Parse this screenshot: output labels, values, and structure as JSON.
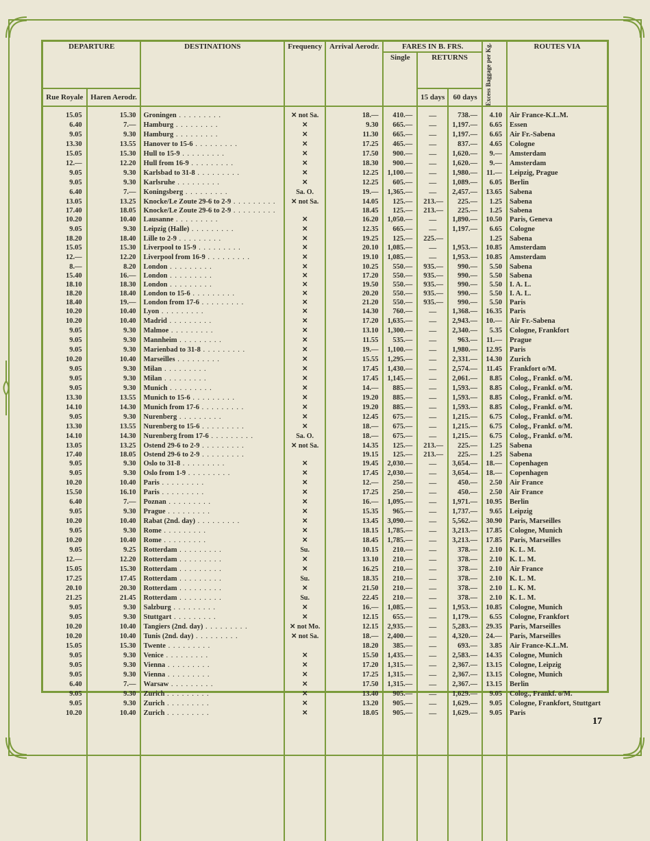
{
  "page_number": "17",
  "frame_color": "#7a9a3a",
  "bg_color": "#ebe7d6",
  "headers": {
    "departure": "DEPARTURE",
    "destinations": "DESTINATIONS",
    "frequency": "Frequency",
    "arrival": "Arrival Aerodr.",
    "fares": "FARES IN B. FRS.",
    "single": "Single",
    "returns": "RETURNS",
    "days15": "15 days",
    "days60": "60 days",
    "excess": "Excess Baggage per Kg.",
    "routes": "ROUTES VIA",
    "rue": "Rue Royale",
    "haren": "Haren Aerodr."
  },
  "freq_symbols": {
    "std": "✕",
    "not_sa": "✕ not Sa.",
    "sa_o": "Sa. O.",
    "su": "Su.",
    "not_mo": "✕ not Mo."
  },
  "rows": [
    {
      "rue": "15.05",
      "haren": "15.30",
      "dest": "Groningen",
      "freq": "✕ not Sa.",
      "arr": "18.—",
      "single": "410.—",
      "r15": "—",
      "r60": "738.—",
      "exc": "4.10",
      "route": "Air France-K.L.M."
    },
    {
      "rue": "6.40",
      "haren": "7.—",
      "dest": "Hamburg",
      "freq": "✕",
      "arr": "9.30",
      "single": "665.—",
      "r15": "—",
      "r60": "1,197.—",
      "exc": "6.65",
      "route": "Essen"
    },
    {
      "rue": "9.05",
      "haren": "9.30",
      "dest": "Hamburg",
      "freq": "✕",
      "arr": "11.30",
      "single": "665.—",
      "r15": "—",
      "r60": "1,197.—",
      "exc": "6.65",
      "route": "Air Fr.-Sabena"
    },
    {
      "rue": "13.30",
      "haren": "13.55",
      "dest": "Hanover to 15-6",
      "freq": "✕",
      "arr": "17.25",
      "single": "465.—",
      "r15": "—",
      "r60": "837.—",
      "exc": "4.65",
      "route": "Cologne"
    },
    {
      "rue": "15.05",
      "haren": "15.30",
      "dest": "Hull to 15-9",
      "freq": "✕",
      "arr": "17.50",
      "single": "900.—",
      "r15": "—",
      "r60": "1,620.—",
      "exc": "9.—",
      "route": "Amsterdam"
    },
    {
      "rue": "12.—",
      "haren": "12.20",
      "dest": "Hull from 16-9",
      "freq": "✕",
      "arr": "18.30",
      "single": "900.—",
      "r15": "—",
      "r60": "1,620.—",
      "exc": "9.—",
      "route": "Amsterdam"
    },
    {
      "rue": "9.05",
      "haren": "9.30",
      "dest": "Karlsbad to 31-8",
      "freq": "✕",
      "arr": "12.25",
      "single": "1,100.—",
      "r15": "—",
      "r60": "1,980.—",
      "exc": "11.—",
      "route": "Leipzig, Prague"
    },
    {
      "rue": "9.05",
      "haren": "9.30",
      "dest": "Karlsruhe",
      "freq": "✕",
      "arr": "12.25",
      "single": "605.—",
      "r15": "—",
      "r60": "1,089.—",
      "exc": "6.05",
      "route": "Berlin"
    },
    {
      "rue": "6.40",
      "haren": "7.—",
      "dest": "Koningsberg",
      "freq": "Sa. O.",
      "arr": "19.—",
      "single": "1,365.—",
      "r15": "—",
      "r60": "2,457.—",
      "exc": "13.65",
      "route": "Sabena"
    },
    {
      "rue": "13.05",
      "haren": "13.25",
      "dest": "Knocke/Le Zoute 29-6 to 2-9",
      "freq": "✕ not Sa.",
      "arr": "14.05",
      "single": "125.—",
      "r15": "213.—",
      "r60": "225.—",
      "exc": "1.25",
      "route": "Sabena"
    },
    {
      "rue": "17.40",
      "haren": "18.05",
      "dest": "Knocke/Le Zoute 29-6 to 2-9",
      "freq": "",
      "arr": "18.45",
      "single": "125.—",
      "r15": "213.—",
      "r60": "225.—",
      "exc": "1.25",
      "route": "Sabena"
    },
    {
      "rue": "10.20",
      "haren": "10.40",
      "dest": "Lausanne",
      "freq": "✕",
      "arr": "16.20",
      "single": "1,050.—",
      "r15": "—",
      "r60": "1,890.—",
      "exc": "10.50",
      "route": "Paris, Geneva"
    },
    {
      "rue": "9.05",
      "haren": "9.30",
      "dest": "Leipzig (Halle)",
      "freq": "✕",
      "arr": "12.35",
      "single": "665.—",
      "r15": "—",
      "r60": "1,197.—",
      "exc": "6.65",
      "route": "Cologne"
    },
    {
      "rue": "18.20",
      "haren": "18.40",
      "dest": "Lille to 2-9",
      "freq": "✕",
      "arr": "19.25",
      "single": "125.—",
      "r15": "225.—",
      "r60": "",
      "exc": "1.25",
      "route": "Sabena"
    },
    {
      "rue": "15.05",
      "haren": "15.30",
      "dest": "Liverpool to 15-9",
      "freq": "✕",
      "arr": "20.10",
      "single": "1,085.—",
      "r15": "—",
      "r60": "1,953.—",
      "exc": "10.85",
      "route": "Amsterdam"
    },
    {
      "rue": "12.—",
      "haren": "12.20",
      "dest": "Liverpool from 16-9",
      "freq": "✕",
      "arr": "19.10",
      "single": "1,085.—",
      "r15": "—",
      "r60": "1,953.—",
      "exc": "10.85",
      "route": "Amsterdam"
    },
    {
      "rue": "8.—",
      "haren": "8.20",
      "dest": "London",
      "freq": "✕",
      "arr": "10.25",
      "single": "550.—",
      "r15": "935.—",
      "r60": "990.—",
      "exc": "5.50",
      "route": "Sabena"
    },
    {
      "rue": "15.40",
      "haren": "16.—",
      "dest": "London",
      "freq": "✕",
      "arr": "17.20",
      "single": "550.—",
      "r15": "935.—",
      "r60": "990.—",
      "exc": "5.50",
      "route": "Sabena"
    },
    {
      "rue": "18.10",
      "haren": "18.30",
      "dest": "London",
      "freq": "✕",
      "arr": "19.50",
      "single": "550.—",
      "r15": "935.—",
      "r60": "990.—",
      "exc": "5.50",
      "route": "I. A. L."
    },
    {
      "rue": "18.20",
      "haren": "18.40",
      "dest": "London to 15-6",
      "freq": "✕",
      "arr": "20.20",
      "single": "550.—",
      "r15": "935.—",
      "r60": "990.—",
      "exc": "5.50",
      "route": "I. A. L."
    },
    {
      "rue": "18.40",
      "haren": "19.—",
      "dest": "London from 17-6",
      "freq": "✕",
      "arr": "21.20",
      "single": "550.—",
      "r15": "935.—",
      "r60": "990.—",
      "exc": "5.50",
      "route": "Paris"
    },
    {
      "rue": "10.20",
      "haren": "10.40",
      "dest": "Lyon",
      "freq": "✕",
      "arr": "14.30",
      "single": "760.—",
      "r15": "—",
      "r60": "1,368.—",
      "exc": "16.35",
      "route": "Paris"
    },
    {
      "rue": "10.20",
      "haren": "10.40",
      "dest": "Madrid",
      "freq": "✕",
      "arr": "17.20",
      "single": "1,635.—",
      "r15": "—",
      "r60": "2,943.—",
      "exc": "10.—",
      "route": "Air Fr.-Sabena"
    },
    {
      "rue": "9.05",
      "haren": "9.30",
      "dest": "Malmoe",
      "freq": "✕",
      "arr": "13.10",
      "single": "1,300.—",
      "r15": "—",
      "r60": "2,340.—",
      "exc": "5.35",
      "route": "Cologne, Frankfort"
    },
    {
      "rue": "9.05",
      "haren": "9.30",
      "dest": "Mannheim",
      "freq": "✕",
      "arr": "11.55",
      "single": "535.—",
      "r15": "—",
      "r60": "963.—",
      "exc": "11.—",
      "route": "Prague"
    },
    {
      "rue": "9.05",
      "haren": "9.30",
      "dest": "Marienbad to 31-8",
      "freq": "✕",
      "arr": "19.—",
      "single": "1,100.—",
      "r15": "—",
      "r60": "1,980.—",
      "exc": "12.95",
      "route": "Paris"
    },
    {
      "rue": "10.20",
      "haren": "10.40",
      "dest": "Marseilles",
      "freq": "✕",
      "arr": "15.55",
      "single": "1,295.—",
      "r15": "—",
      "r60": "2,331.—",
      "exc": "14.30",
      "route": "Zurich"
    },
    {
      "rue": "9.05",
      "haren": "9.30",
      "dest": "Milan",
      "freq": "✕",
      "arr": "17.45",
      "single": "1,430.—",
      "r15": "—",
      "r60": "2,574.—",
      "exc": "11.45",
      "route": "Frankfort o/M."
    },
    {
      "rue": "9.05",
      "haren": "9.30",
      "dest": "Milan",
      "freq": "✕",
      "arr": "17.45",
      "single": "1,145.—",
      "r15": "—",
      "r60": "2,061.—",
      "exc": "8.85",
      "route": "Colog., Frankf. o/M."
    },
    {
      "rue": "9.05",
      "haren": "9.30",
      "dest": "Munich",
      "freq": "✕",
      "arr": "14.—",
      "single": "885.—",
      "r15": "—",
      "r60": "1,593.—",
      "exc": "8.85",
      "route": "Colog., Frankf. o/M."
    },
    {
      "rue": "13.30",
      "haren": "13.55",
      "dest": "Munich to 15-6",
      "freq": "✕",
      "arr": "19.20",
      "single": "885.—",
      "r15": "—",
      "r60": "1,593.—",
      "exc": "8.85",
      "route": "Colog., Frankf. o/M."
    },
    {
      "rue": "14.10",
      "haren": "14.30",
      "dest": "Munich from 17-6",
      "freq": "✕",
      "arr": "19.20",
      "single": "885.—",
      "r15": "—",
      "r60": "1,593.—",
      "exc": "8.85",
      "route": "Colog., Frankf. o/M."
    },
    {
      "rue": "9.05",
      "haren": "9.30",
      "dest": "Nurenberg",
      "freq": "✕",
      "arr": "12.45",
      "single": "675.—",
      "r15": "—",
      "r60": "1,215.—",
      "exc": "6.75",
      "route": "Colog., Frankf. o/M."
    },
    {
      "rue": "13.30",
      "haren": "13.55",
      "dest": "Nurenberg to 15-6",
      "freq": "✕",
      "arr": "18.—",
      "single": "675.—",
      "r15": "—",
      "r60": "1,215.—",
      "exc": "6.75",
      "route": "Colog., Frankf. o/M."
    },
    {
      "rue": "14.10",
      "haren": "14.30",
      "dest": "Nurenberg from 17-6",
      "freq": "Sa. O.",
      "arr": "18.—",
      "single": "675.—",
      "r15": "—",
      "r60": "1,215.—",
      "exc": "6.75",
      "route": "Colog., Frankf. o/M."
    },
    {
      "rue": "13.05",
      "haren": "13.25",
      "dest": "Ostend 29-6 to 2-9",
      "freq": "✕ not Sa.",
      "arr": "14.35",
      "single": "125.—",
      "r15": "213.—",
      "r60": "225.—",
      "exc": "1.25",
      "route": "Sabena"
    },
    {
      "rue": "17.40",
      "haren": "18.05",
      "dest": "Ostend 29-6 to 2-9",
      "freq": "",
      "arr": "19.15",
      "single": "125.—",
      "r15": "213.—",
      "r60": "225.—",
      "exc": "1.25",
      "route": "Sabena"
    },
    {
      "rue": "9.05",
      "haren": "9.30",
      "dest": "Oslo to 31-8",
      "freq": "✕",
      "arr": "19.45",
      "single": "2,030.—",
      "r15": "—",
      "r60": "3,654.—",
      "exc": "18.—",
      "route": "Copenhagen"
    },
    {
      "rue": "9.05",
      "haren": "9.30",
      "dest": "Oslo from 1-9",
      "freq": "✕",
      "arr": "17.45",
      "single": "2,030.—",
      "r15": "—",
      "r60": "3,654.—",
      "exc": "18.—",
      "route": "Copenhagen"
    },
    {
      "rue": "10.20",
      "haren": "10.40",
      "dest": "Paris",
      "freq": "✕",
      "arr": "12.—",
      "single": "250.—",
      "r15": "—",
      "r60": "450.—",
      "exc": "2.50",
      "route": "Air France"
    },
    {
      "rue": "15.50",
      "haren": "16.10",
      "dest": "Paris",
      "freq": "✕",
      "arr": "17.25",
      "single": "250.—",
      "r15": "—",
      "r60": "450.—",
      "exc": "2.50",
      "route": "Air France"
    },
    {
      "rue": "6.40",
      "haren": "7.—",
      "dest": "Poznan",
      "freq": "✕",
      "arr": "16.—",
      "single": "1,095.—",
      "r15": "—",
      "r60": "1,971.—",
      "exc": "10.95",
      "route": "Berlin"
    },
    {
      "rue": "9.05",
      "haren": "9.30",
      "dest": "Prague",
      "freq": "✕",
      "arr": "15.35",
      "single": "965.—",
      "r15": "—",
      "r60": "1,737.—",
      "exc": "9.65",
      "route": "Leipzig"
    },
    {
      "rue": "10.20",
      "haren": "10.40",
      "dest": "Rabat (2nd. day)",
      "freq": "✕",
      "arr": "13.45",
      "single": "3,090.—",
      "r15": "—",
      "r60": "5,562.—",
      "exc": "30.90",
      "route": "Paris, Marseilles"
    },
    {
      "rue": "9.05",
      "haren": "9.30",
      "dest": "Rome",
      "freq": "✕",
      "arr": "18.15",
      "single": "1,785.—",
      "r15": "—",
      "r60": "3,213.—",
      "exc": "17.85",
      "route": "Cologne, Munich"
    },
    {
      "rue": "10.20",
      "haren": "10.40",
      "dest": "Rome",
      "freq": "✕",
      "arr": "18.45",
      "single": "1,785.—",
      "r15": "—",
      "r60": "3,213.—",
      "exc": "17.85",
      "route": "Paris, Marseilles"
    },
    {
      "rue": "9.05",
      "haren": "9.25",
      "dest": "Rotterdam",
      "freq": "Su.",
      "arr": "10.15",
      "single": "210.—",
      "r15": "—",
      "r60": "378.—",
      "exc": "2.10",
      "route": "K. L. M."
    },
    {
      "rue": "12.—",
      "haren": "12.20",
      "dest": "Rotterdam",
      "freq": "✕",
      "arr": "13.10",
      "single": "210.—",
      "r15": "—",
      "r60": "378.—",
      "exc": "2.10",
      "route": "K. L. M."
    },
    {
      "rue": "15.05",
      "haren": "15.30",
      "dest": "Rotterdam",
      "freq": "✕",
      "arr": "16.25",
      "single": "210.—",
      "r15": "—",
      "r60": "378.—",
      "exc": "2.10",
      "route": "Air France"
    },
    {
      "rue": "17.25",
      "haren": "17.45",
      "dest": "Rotterdam",
      "freq": "Su.",
      "arr": "18.35",
      "single": "210.—",
      "r15": "—",
      "r60": "378.—",
      "exc": "2.10",
      "route": "K. L. M."
    },
    {
      "rue": "20.10",
      "haren": "20.30",
      "dest": "Rotterdam",
      "freq": "✕",
      "arr": "21.50",
      "single": "210.—",
      "r15": "—",
      "r60": "378.—",
      "exc": "2.10",
      "route": "L. K. M."
    },
    {
      "rue": "21.25",
      "haren": "21.45",
      "dest": "Rotterdam",
      "freq": "Su.",
      "arr": "22.45",
      "single": "210.—",
      "r15": "—",
      "r60": "378.—",
      "exc": "2.10",
      "route": "K. L. M."
    },
    {
      "rue": "9.05",
      "haren": "9.30",
      "dest": "Salzburg",
      "freq": "✕",
      "arr": "16.—",
      "single": "1,085.—",
      "r15": "—",
      "r60": "1,953.—",
      "exc": "10.85",
      "route": "Cologne, Munich"
    },
    {
      "rue": "9.05",
      "haren": "9.30",
      "dest": "Stuttgart",
      "freq": "✕",
      "arr": "12.15",
      "single": "655.—",
      "r15": "—",
      "r60": "1,179.—",
      "exc": "6.55",
      "route": "Cologne, Frankfort"
    },
    {
      "rue": "10.20",
      "haren": "10.40",
      "dest": "Tangiers (2nd. day)",
      "freq": "✕ not Mo.",
      "arr": "12.15",
      "single": "2,935.—",
      "r15": "—",
      "r60": "5,283.—",
      "exc": "29.35",
      "route": "Paris, Marseilles"
    },
    {
      "rue": "10.20",
      "haren": "10.40",
      "dest": "Tunis (2nd. day)",
      "freq": "✕ not Sa.",
      "arr": "18.—",
      "single": "2,400.—",
      "r15": "—",
      "r60": "4,320.—",
      "exc": "24.—",
      "route": "Paris, Marseilles"
    },
    {
      "rue": "15.05",
      "haren": "15.30",
      "dest": "Twente",
      "freq": "",
      "arr": "18.20",
      "single": "385.—",
      "r15": "—",
      "r60": "693.—",
      "exc": "3.85",
      "route": "Air France-K.L.M."
    },
    {
      "rue": "9.05",
      "haren": "9.30",
      "dest": "Venice",
      "freq": "✕",
      "arr": "15.50",
      "single": "1,435.—",
      "r15": "—",
      "r60": "2,583.—",
      "exc": "14.35",
      "route": "Cologne, Munich"
    },
    {
      "rue": "9.05",
      "haren": "9.30",
      "dest": "Vienna",
      "freq": "✕",
      "arr": "17.20",
      "single": "1,315.—",
      "r15": "—",
      "r60": "2,367.—",
      "exc": "13.15",
      "route": "Cologne, Leipzig"
    },
    {
      "rue": "9.05",
      "haren": "9.30",
      "dest": "Vienna",
      "freq": "✕",
      "arr": "17.25",
      "single": "1,315.—",
      "r15": "—",
      "r60": "2,367.—",
      "exc": "13.15",
      "route": "Cologne, Munich"
    },
    {
      "rue": "6.40",
      "haren": "7.—",
      "dest": "Warsaw",
      "freq": "✕",
      "arr": "17.50",
      "single": "1,315.—",
      "r15": "—",
      "r60": "2,367.—",
      "exc": "13.15",
      "route": "Berlin"
    },
    {
      "rue": "9.05",
      "haren": "9.30",
      "dest": "Zurich",
      "freq": "✕",
      "arr": "13.40",
      "single": "905.—",
      "r15": "—",
      "r60": "1,629.—",
      "exc": "9.05",
      "route": "Colog., Frankf. o/M."
    },
    {
      "rue": "9.05",
      "haren": "9.30",
      "dest": "Zurich",
      "freq": "✕",
      "arr": "13.20",
      "single": "905.—",
      "r15": "—",
      "r60": "1,629.—",
      "exc": "9.05",
      "route": "Cologne, Frankfort, Stuttgart"
    },
    {
      "rue": "10.20",
      "haren": "10.40",
      "dest": "Zurich",
      "freq": "✕",
      "arr": "18.05",
      "single": "905.—",
      "r15": "—",
      "r60": "1,629.—",
      "exc": "9.05",
      "route": "Paris"
    }
  ]
}
